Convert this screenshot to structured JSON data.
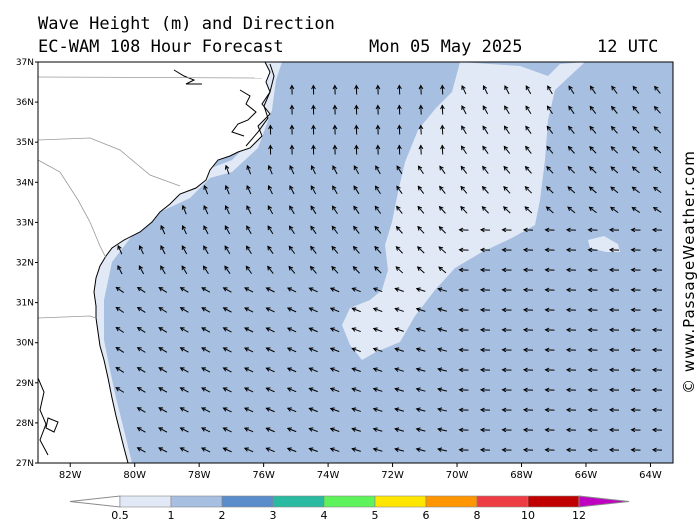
{
  "title": {
    "line1": "Wave Height (m) and Direction",
    "line2": "EC-WAM 108 Hour Forecast",
    "date": "Mon 05 May 2025",
    "time": "12 UTC"
  },
  "credit": "© www.PassageWeather.com",
  "map": {
    "lat_labels": [
      "37N",
      "36N",
      "35N",
      "34N",
      "33N",
      "32N",
      "31N",
      "30N",
      "29N",
      "28N",
      "27N"
    ],
    "lon_labels": [
      "82W",
      "80W",
      "78W",
      "76W",
      "74W",
      "72W",
      "70W",
      "68W",
      "66W",
      "64W"
    ],
    "lat_range": [
      27,
      37
    ],
    "lon_range": [
      -83,
      -63.3
    ],
    "colors": {
      "land": "#ffffff",
      "coast": "#000000",
      "band_05_1": "#e1e9f6",
      "band_1_2": "#a7bfe0",
      "band_2_3": "#5a8ccb",
      "arrows": "#000000"
    }
  },
  "scale": {
    "labels": [
      "0.5",
      "1",
      "2",
      "3",
      "4",
      "5",
      "6",
      "8",
      "10",
      "12"
    ],
    "colors": [
      "#e1e9f6",
      "#a7bfe0",
      "#5a8ccb",
      "#2ab9a1",
      "#5ef25b",
      "#ffe600",
      "#ff9500",
      "#ee3c44",
      "#c00000",
      "#c000c0"
    ]
  }
}
